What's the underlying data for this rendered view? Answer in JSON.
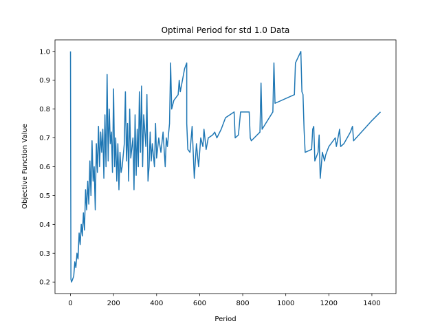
{
  "chart_data": {
    "type": "line",
    "title": "Optimal Period for std 1.0 Data",
    "xlabel": "Period",
    "ylabel": "Objective Function Value",
    "color": "#1f77b4",
    "x": [
      0,
      2,
      5,
      10,
      15,
      20,
      25,
      30,
      35,
      40,
      45,
      50,
      55,
      60,
      65,
      70,
      75,
      80,
      85,
      90,
      95,
      100,
      105,
      110,
      115,
      120,
      125,
      130,
      135,
      140,
      145,
      150,
      155,
      160,
      165,
      170,
      175,
      180,
      185,
      190,
      195,
      200,
      205,
      210,
      215,
      220,
      225,
      230,
      235,
      240,
      250,
      255,
      260,
      265,
      270,
      275,
      280,
      290,
      295,
      300,
      305,
      310,
      315,
      320,
      325,
      330,
      335,
      340,
      350,
      355,
      360,
      365,
      370,
      375,
      380,
      390,
      395,
      400,
      410,
      420,
      430,
      440,
      445,
      450,
      460,
      465,
      470,
      480,
      500,
      505,
      510,
      530,
      540,
      540,
      545,
      555,
      565,
      575,
      585,
      595,
      605,
      615,
      620,
      630,
      640,
      660,
      670,
      680,
      700,
      720,
      760,
      765,
      780,
      790,
      830,
      835,
      840,
      880,
      885,
      890,
      940,
      945,
      950,
      1040,
      1045,
      1070,
      1075,
      1080,
      1085,
      1090,
      1120,
      1125,
      1130,
      1135,
      1150,
      1155,
      1160,
      1170,
      1180,
      1185,
      1200,
      1230,
      1235,
      1250,
      1255,
      1270,
      1300,
      1310,
      1315,
      1400,
      1440
    ],
    "values": [
      1.0,
      0.21,
      0.2,
      0.21,
      0.22,
      0.27,
      0.25,
      0.3,
      0.28,
      0.37,
      0.33,
      0.4,
      0.36,
      0.44,
      0.38,
      0.52,
      0.45,
      0.55,
      0.47,
      0.62,
      0.5,
      0.69,
      0.55,
      0.6,
      0.45,
      0.68,
      0.58,
      0.74,
      0.6,
      0.72,
      0.65,
      0.73,
      0.56,
      0.78,
      0.6,
      0.92,
      0.62,
      0.8,
      0.68,
      0.72,
      0.58,
      0.87,
      0.6,
      0.7,
      0.55,
      0.68,
      0.52,
      0.65,
      0.58,
      0.6,
      0.68,
      0.86,
      0.62,
      0.75,
      0.55,
      0.8,
      0.63,
      0.7,
      0.52,
      0.78,
      0.57,
      0.73,
      0.6,
      0.86,
      0.65,
      0.88,
      0.6,
      0.78,
      0.67,
      0.85,
      0.55,
      0.6,
      0.72,
      0.62,
      0.68,
      0.6,
      0.75,
      0.63,
      0.7,
      0.65,
      0.72,
      0.6,
      0.7,
      0.67,
      0.75,
      0.96,
      0.8,
      0.83,
      0.85,
      0.9,
      0.86,
      0.94,
      0.96,
      0.75,
      0.66,
      0.65,
      0.74,
      0.56,
      0.68,
      0.6,
      0.7,
      0.67,
      0.73,
      0.66,
      0.7,
      0.71,
      0.72,
      0.7,
      0.73,
      0.77,
      0.79,
      0.7,
      0.71,
      0.79,
      0.79,
      0.7,
      0.69,
      0.72,
      0.89,
      0.73,
      0.79,
      0.96,
      0.82,
      0.85,
      0.96,
      1.0,
      0.86,
      0.85,
      0.73,
      0.65,
      0.66,
      0.73,
      0.74,
      0.62,
      0.65,
      0.71,
      0.56,
      0.65,
      0.62,
      0.64,
      0.67,
      0.7,
      0.67,
      0.73,
      0.67,
      0.68,
      0.72,
      0.74,
      0.69,
      0.76,
      0.79
    ],
    "xlim": [
      -72,
      1512
    ],
    "ylim": [
      0.16,
      1.04
    ],
    "xticks": [
      0,
      200,
      400,
      600,
      800,
      1000,
      1200,
      1400
    ],
    "yticks": [
      0.2,
      0.3,
      0.4,
      0.5,
      0.6,
      0.7,
      0.8,
      0.9,
      {
        "value": 1,
        "label": "1.0"
      }
    ]
  }
}
